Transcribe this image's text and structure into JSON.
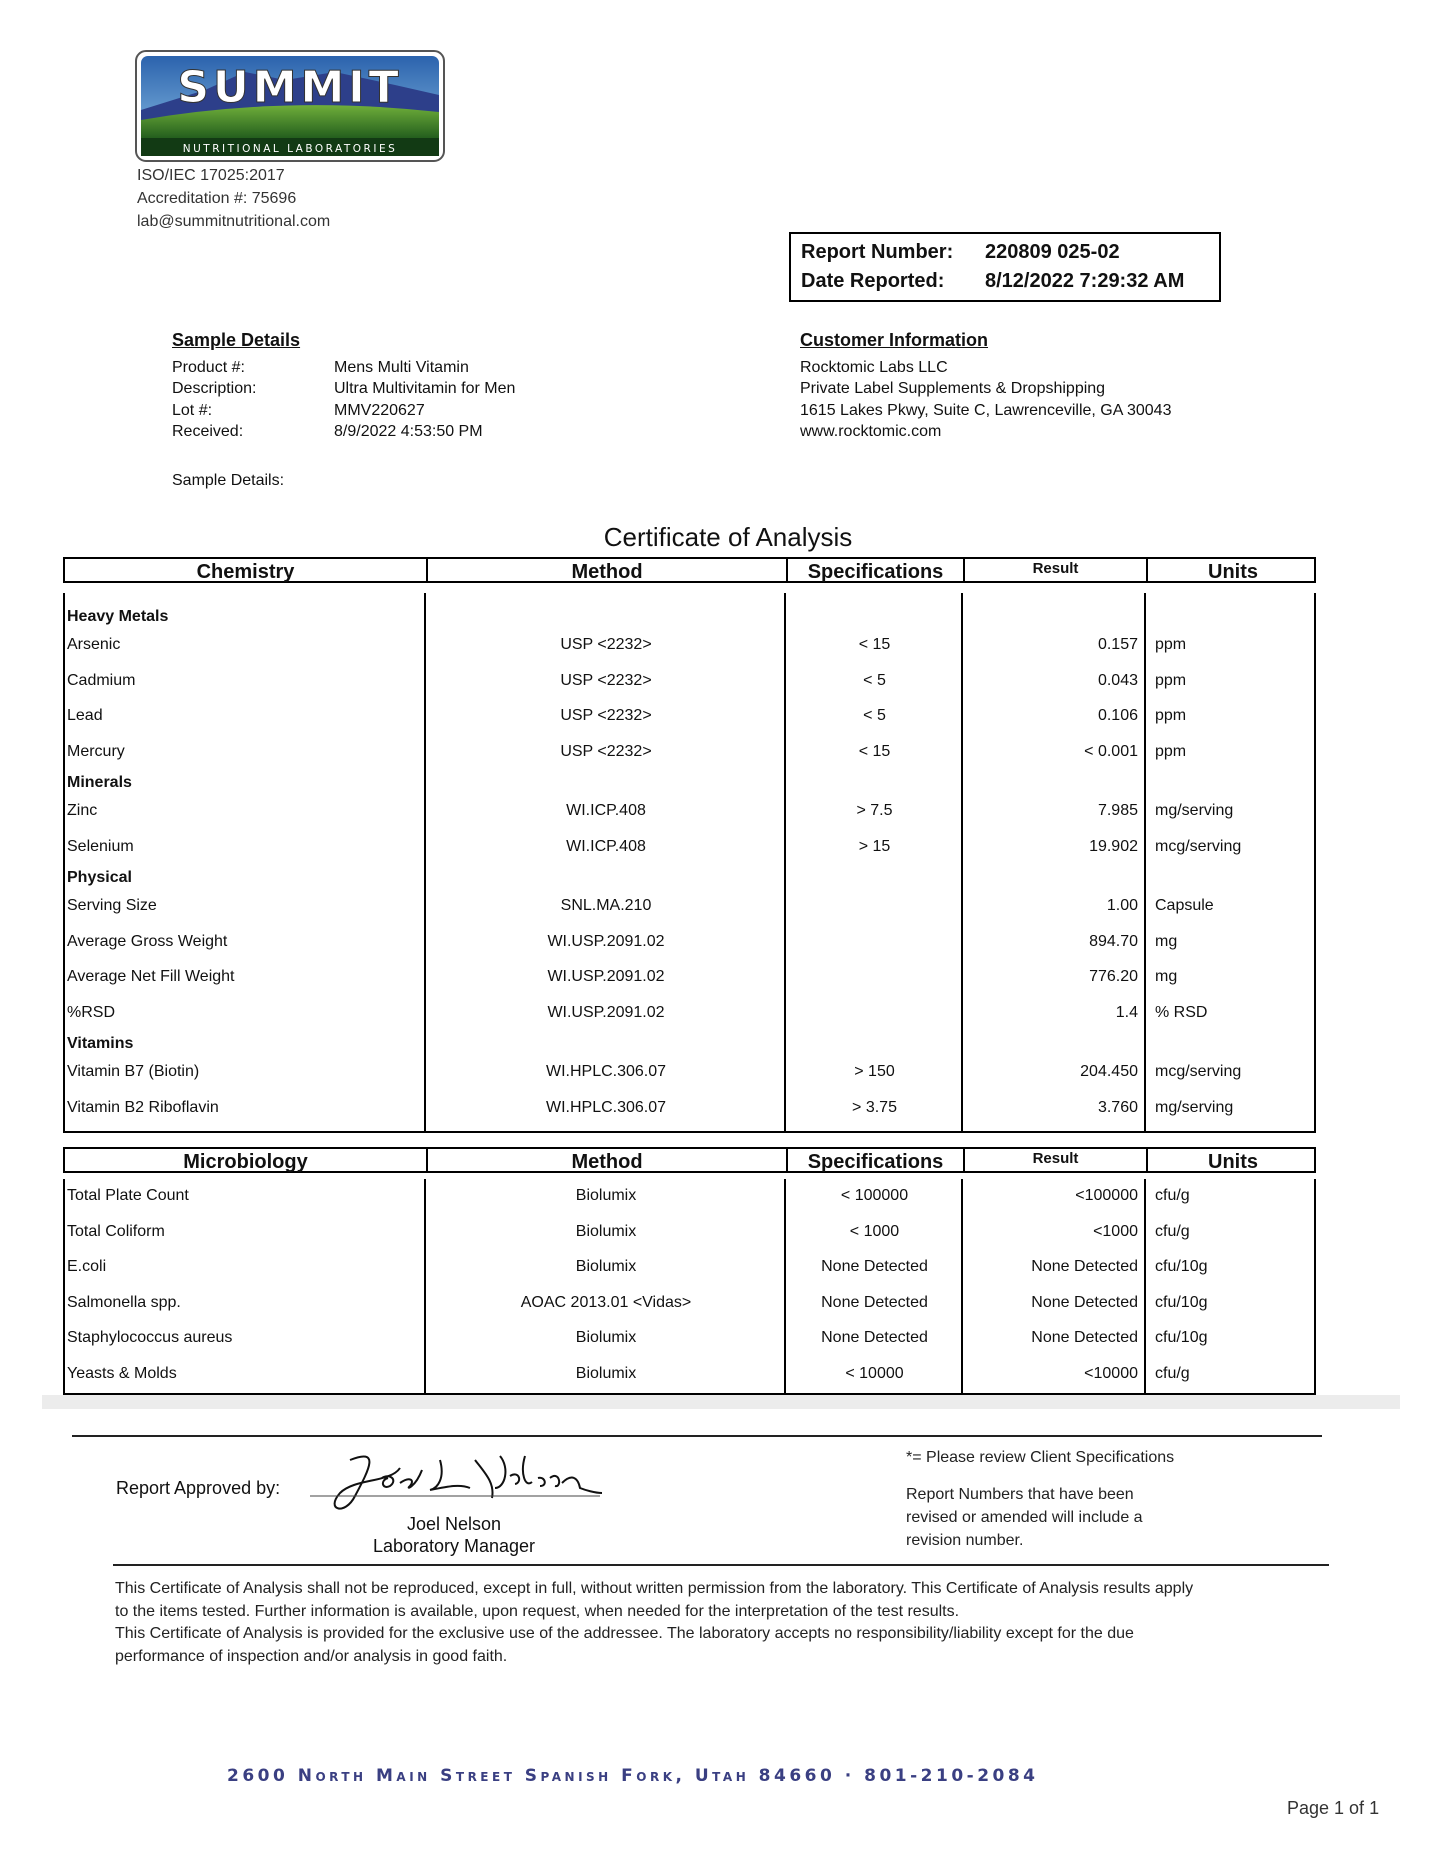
{
  "lab": {
    "logo_text": "SUMMIT",
    "logo_subtext": "NUTRITIONAL LABORATORIES",
    "iso": "ISO/IEC 17025:2017",
    "accreditation": "Accreditation #: 75696",
    "email": "lab@summitnutritional.com"
  },
  "report": {
    "number_label": "Report Number:",
    "number": "220809 025-02",
    "date_label": "Date Reported:",
    "date": "8/12/2022 7:29:32 AM"
  },
  "sample": {
    "heading": "Sample Details",
    "fields": [
      {
        "label": "Product #:",
        "value": "Mens Multi Vitamin"
      },
      {
        "label": "Description:",
        "value": "Ultra Multivitamin for Men"
      },
      {
        "label": "Lot #:",
        "value": "MMV220627"
      },
      {
        "label": "Received:",
        "value": "8/9/2022 4:53:50 PM"
      }
    ],
    "details_label": "Sample Details:"
  },
  "customer": {
    "heading": "Customer Information",
    "lines": [
      "Rocktomic Labs LLC",
      "Private Label Supplements & Dropshipping",
      "1615 Lakes Pkwy, Suite C, Lawrenceville, GA 30043",
      "www.rocktomic.com"
    ]
  },
  "certificate_title": "Certificate of Analysis",
  "chemistry": {
    "headers": [
      "Chemistry",
      "Method",
      "Specifications",
      "Result",
      "Units"
    ],
    "rows": [
      {
        "category": "Heavy Metals"
      },
      {
        "name": "Arsenic",
        "method": "USP <2232>",
        "spec": "< 15",
        "result": "0.157",
        "units": "ppm"
      },
      {
        "name": "Cadmium",
        "method": "USP <2232>",
        "spec": "< 5",
        "result": "0.043",
        "units": "ppm"
      },
      {
        "name": "Lead",
        "method": "USP <2232>",
        "spec": "< 5",
        "result": "0.106",
        "units": "ppm"
      },
      {
        "name": "Mercury",
        "method": "USP <2232>",
        "spec": "< 15",
        "result": "< 0.001",
        "units": "ppm"
      },
      {
        "category": "Minerals"
      },
      {
        "name": "Zinc",
        "method": "WI.ICP.408",
        "spec": "> 7.5",
        "result": "7.985",
        "units": "mg/serving"
      },
      {
        "name": "Selenium",
        "method": "WI.ICP.408",
        "spec": "> 15",
        "result": "19.902",
        "units": "mcg/serving"
      },
      {
        "category": "Physical"
      },
      {
        "name": "Serving Size",
        "method": "SNL.MA.210",
        "spec": "",
        "result": "1.00",
        "units": "Capsule"
      },
      {
        "name": "Average Gross Weight",
        "method": "WI.USP.2091.02",
        "spec": "",
        "result": "894.70",
        "units": "mg"
      },
      {
        "name": "Average Net Fill Weight",
        "method": "WI.USP.2091.02",
        "spec": "",
        "result": "776.20",
        "units": "mg"
      },
      {
        "name": "%RSD",
        "method": "WI.USP.2091.02",
        "spec": "",
        "result": "1.4",
        "units": "% RSD"
      },
      {
        "category": "Vitamins"
      },
      {
        "name": "Vitamin B7 (Biotin)",
        "method": "WI.HPLC.306.07",
        "spec": "> 150",
        "result": "204.450",
        "units": "mcg/serving"
      },
      {
        "name": "Vitamin B2 Riboflavin",
        "method": "WI.HPLC.306.07",
        "spec": "> 3.75",
        "result": "3.760",
        "units": "mg/serving"
      }
    ]
  },
  "microbiology": {
    "headers": [
      "Microbiology",
      "Method",
      "Specifications",
      "Result",
      "Units"
    ],
    "rows": [
      {
        "name": "Total Plate Count",
        "method": "Biolumix",
        "spec": "< 100000",
        "result": "<100000",
        "units": "cfu/g"
      },
      {
        "name": "Total Coliform",
        "method": "Biolumix",
        "spec": "< 1000",
        "result": "<1000",
        "units": "cfu/g"
      },
      {
        "name": "E.coli",
        "method": "Biolumix",
        "spec": "None Detected",
        "result": "None Detected",
        "units": "cfu/10g"
      },
      {
        "name": "Salmonella spp.",
        "method": "AOAC 2013.01 <Vidas>",
        "spec": "None Detected",
        "result": "None Detected",
        "units": "cfu/10g"
      },
      {
        "name": "Staphylococcus aureus",
        "method": "Biolumix",
        "spec": "None Detected",
        "result": "None Detected",
        "units": "cfu/10g"
      },
      {
        "name": "Yeasts & Molds",
        "method": "Biolumix",
        "spec": "< 10000",
        "result": "<10000",
        "units": "cfu/g"
      }
    ]
  },
  "approval": {
    "label": "Report Approved by:",
    "signature": "Joel L Nelson",
    "name": "Joel Nelson",
    "title": "Laboratory Manager"
  },
  "notes": {
    "client_spec": "*= Please review Client Specifications",
    "revision": [
      "Report Numbers that have been",
      "revised or amended will include a",
      "revision number."
    ]
  },
  "disclaimer": [
    "This Certificate of Analysis shall not be reproduced, except in full, without written permission from the laboratory. This Certificate of Analysis results apply",
    "to the items tested. Further information is available, upon request, when needed for the interpretation of the test results.",
    "This Certificate of Analysis is provided for the exclusive use of the addressee. The laboratory accepts no responsibility/liability except for the due",
    "performance of inspection and/or analysis in good faith."
  ],
  "footer": {
    "address": "2600 North Main Street  Spanish Fork, Utah  84660 · 801-210-2084",
    "page": "Page 1 of 1"
  },
  "colors": {
    "address": "#3a3f82",
    "logo_sky": "#2e6fb5",
    "logo_green": "#3f8a2a"
  }
}
